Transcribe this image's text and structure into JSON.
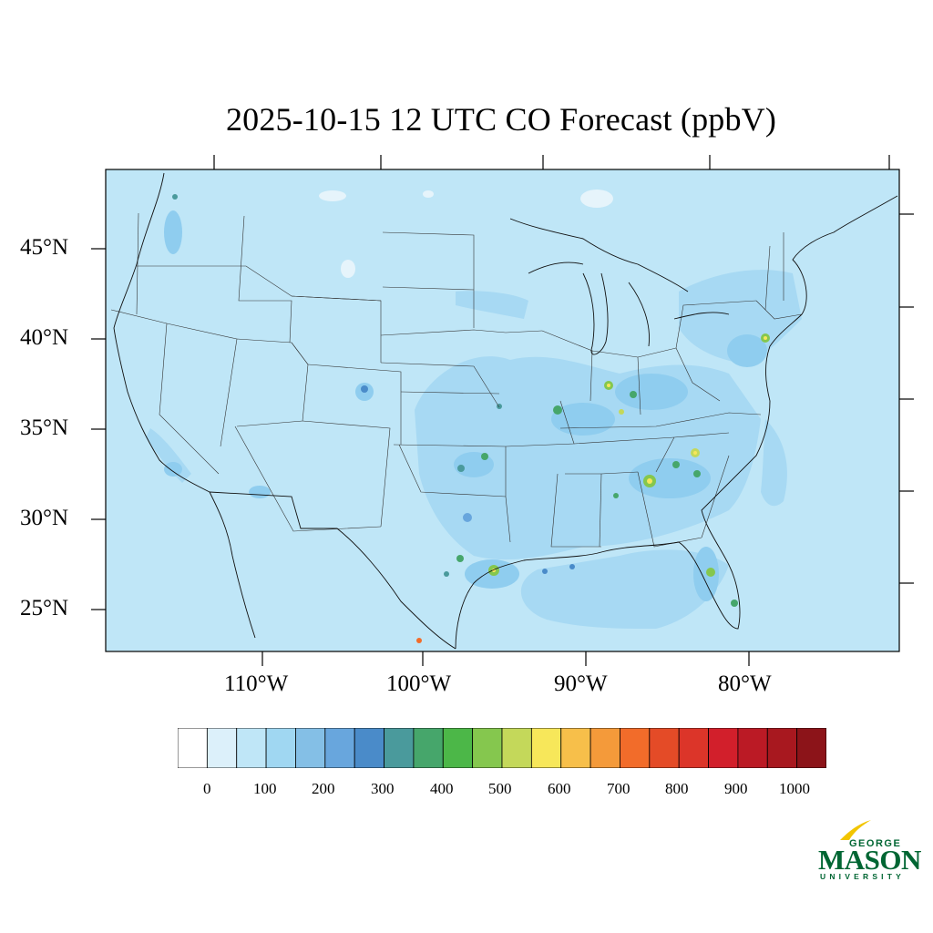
{
  "title": "2025-10-15 12 UTC CO Forecast (ppbV)",
  "map": {
    "background_color": "#bfe6f7",
    "lat_labels": [
      "45°N",
      "40°N",
      "35°N",
      "30°N",
      "25°N"
    ],
    "lon_labels": [
      "110°W",
      "100°W",
      "90°W",
      "80°W"
    ]
  },
  "colorbar": {
    "colors": [
      "#ffffff",
      "#dcf0fa",
      "#bfe6f7",
      "#a0d7f2",
      "#84bfe6",
      "#68a6dd",
      "#4a8bc9",
      "#4a9a9c",
      "#46a66b",
      "#4cb748",
      "#85c74e",
      "#c4d85a",
      "#f7e75a",
      "#f7bf4a",
      "#f49a3a",
      "#f26c2a",
      "#e44b27",
      "#dc3529",
      "#d21f2b",
      "#bb1a25",
      "#a8181f",
      "#8c1419"
    ],
    "tick_labels": [
      "0",
      "100",
      "200",
      "300",
      "400",
      "500",
      "600",
      "700",
      "800",
      "900",
      "1000"
    ]
  },
  "logo": {
    "line1": "GEORGE",
    "line2": "MASON",
    "line3": "UNIVERSITY",
    "color": "#006633",
    "accent": "#f2c500"
  }
}
